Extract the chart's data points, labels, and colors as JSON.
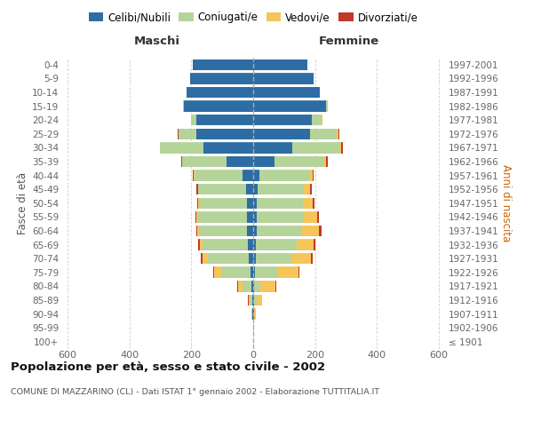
{
  "age_groups": [
    "100+",
    "95-99",
    "90-94",
    "85-89",
    "80-84",
    "75-79",
    "70-74",
    "65-69",
    "60-64",
    "55-59",
    "50-54",
    "45-49",
    "40-44",
    "35-39",
    "30-34",
    "25-29",
    "20-24",
    "15-19",
    "10-14",
    "5-9",
    "0-4"
  ],
  "birth_years": [
    "≤ 1901",
    "1902-1906",
    "1907-1911",
    "1912-1916",
    "1917-1921",
    "1922-1926",
    "1927-1931",
    "1932-1936",
    "1937-1941",
    "1942-1946",
    "1947-1951",
    "1952-1956",
    "1957-1961",
    "1962-1966",
    "1967-1971",
    "1972-1976",
    "1977-1981",
    "1982-1986",
    "1987-1991",
    "1992-1996",
    "1997-2001"
  ],
  "maschi": {
    "celibi": [
      1,
      1,
      2,
      3,
      5,
      10,
      15,
      18,
      20,
      20,
      20,
      22,
      35,
      85,
      160,
      185,
      185,
      225,
      215,
      205,
      195
    ],
    "coniugati": [
      0,
      0,
      2,
      8,
      30,
      90,
      130,
      145,
      155,
      160,
      155,
      155,
      155,
      145,
      140,
      55,
      15,
      3,
      0,
      0,
      0
    ],
    "vedovi": [
      0,
      0,
      1,
      4,
      15,
      25,
      20,
      10,
      5,
      3,
      2,
      1,
      1,
      0,
      0,
      0,
      0,
      0,
      0,
      0,
      0
    ],
    "divorziati": [
      0,
      0,
      0,
      1,
      2,
      3,
      5,
      5,
      5,
      5,
      5,
      5,
      5,
      3,
      2,
      3,
      1,
      0,
      0,
      0,
      0
    ]
  },
  "femmine": {
    "nubili": [
      1,
      1,
      2,
      3,
      3,
      5,
      8,
      10,
      12,
      12,
      12,
      15,
      20,
      70,
      125,
      185,
      190,
      235,
      215,
      195,
      175
    ],
    "coniugate": [
      0,
      0,
      2,
      8,
      20,
      75,
      115,
      130,
      145,
      150,
      150,
      150,
      160,
      160,
      155,
      85,
      30,
      5,
      0,
      0,
      0
    ],
    "vedove": [
      0,
      1,
      4,
      18,
      50,
      65,
      65,
      55,
      55,
      45,
      30,
      20,
      12,
      5,
      5,
      5,
      3,
      1,
      0,
      0,
      0
    ],
    "divorziate": [
      0,
      0,
      0,
      1,
      2,
      5,
      5,
      5,
      8,
      5,
      5,
      5,
      3,
      5,
      5,
      3,
      1,
      0,
      0,
      0,
      0
    ]
  },
  "colors": {
    "celibi": "#2e6da4",
    "coniugati": "#b5d49a",
    "vedovi": "#f5c55a",
    "divorziati": "#c0392b"
  },
  "legend_labels": [
    "Celibi/Nubili",
    "Coniugati/e",
    "Vedovi/e",
    "Divorziati/e"
  ],
  "xlim": 620,
  "title": "Popolazione per età, sesso e stato civile - 2002",
  "subtitle": "COMUNE DI MAZZARINO (CL) - Dati ISTAT 1° gennaio 2002 - Elaborazione TUTTITALIA.IT",
  "ylabel_left": "Fasce di età",
  "ylabel_right": "Anni di nascita",
  "label_maschi": "Maschi",
  "label_femmine": "Femmine",
  "bg_color": "#ffffff",
  "grid_color": "#cccccc"
}
